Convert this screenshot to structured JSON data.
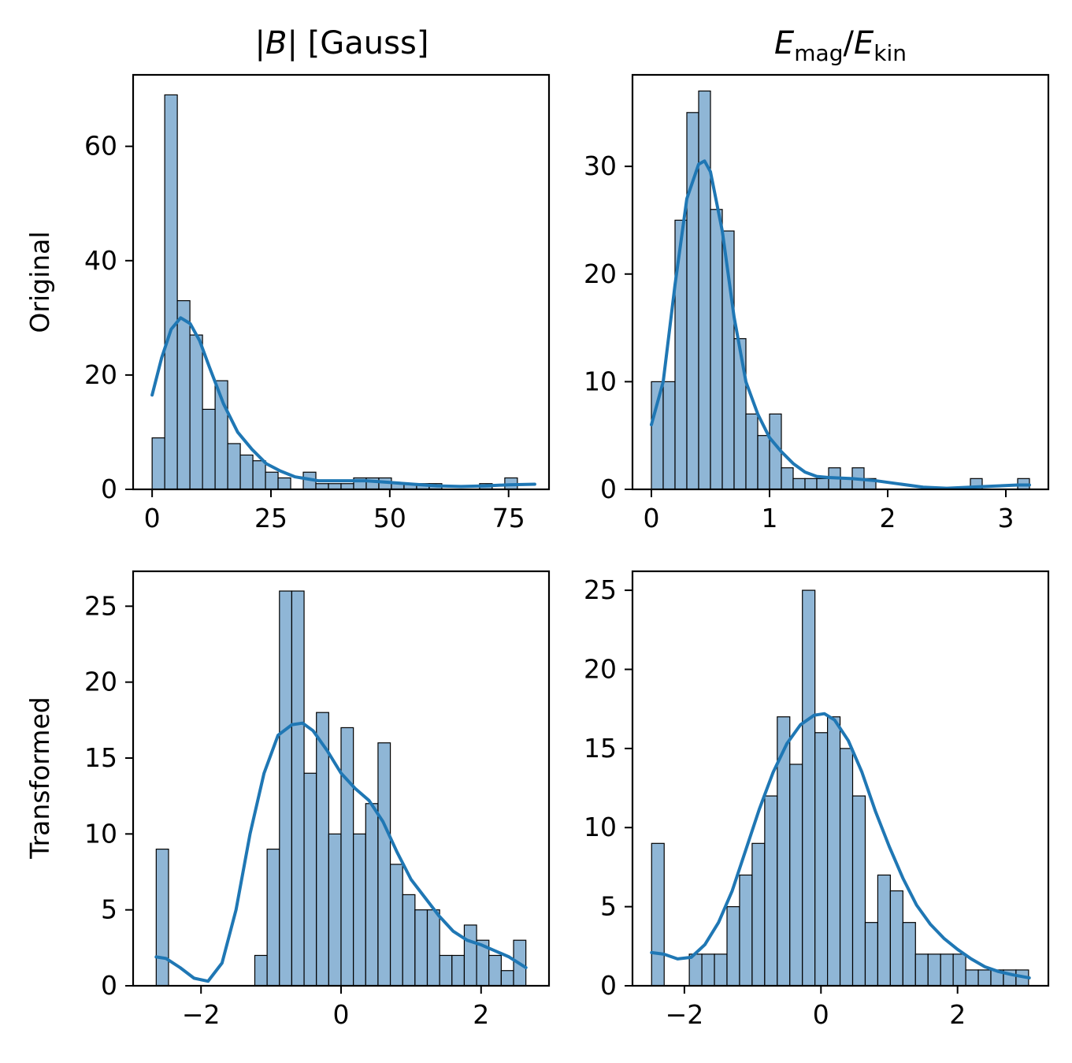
{
  "colors": {
    "bar_fill": "#8fb6d6",
    "bar_edge": "#000000",
    "kde_line": "#1f77b4",
    "axes": "#000000",
    "background": "#ffffff"
  },
  "figure": {
    "column_titles": [
      "|B| [Gauss]",
      "E_mag/E_kin"
    ],
    "row_labels": [
      "Original",
      "Transformed"
    ]
  },
  "chart_data": [
    {
      "id": "orig-b",
      "type": "bar",
      "row": "Original",
      "column": "|B| [Gauss]",
      "grid": false,
      "bin_start": 0.0,
      "bin_width": 2.65,
      "values": [
        9,
        69,
        33,
        27,
        14,
        19,
        8,
        6,
        5,
        3,
        2,
        0,
        3,
        1,
        1,
        1,
        2,
        2,
        2,
        1,
        1,
        1,
        1,
        0,
        0,
        0,
        1,
        0,
        2,
        0
      ],
      "kde": {
        "x": [
          0,
          2,
          4,
          6,
          8,
          10,
          12,
          15,
          18,
          21,
          24,
          27,
          30,
          35,
          40,
          45,
          50,
          55,
          60,
          65,
          70,
          75,
          80.5
        ],
        "y": [
          16.5,
          23,
          28,
          30,
          29,
          26,
          21.5,
          15,
          10,
          7,
          4.5,
          3.2,
          2.2,
          1.5,
          1.5,
          1.5,
          1.2,
          0.9,
          0.6,
          0.5,
          0.6,
          0.8,
          0.9
        ]
      },
      "xlim": [
        -4,
        83.5
      ],
      "ylim": [
        0,
        72.5
      ],
      "xticks": [
        0,
        25,
        50,
        75
      ],
      "xtick_labels": [
        "0",
        "25",
        "50",
        "75"
      ],
      "yticks": [
        0,
        20,
        40,
        60
      ],
      "ytick_labels": [
        "0",
        "20",
        "40",
        "60"
      ]
    },
    {
      "id": "orig-e",
      "type": "bar",
      "row": "Original",
      "column": "E_mag/E_kin",
      "grid": false,
      "bin_start": 0.0,
      "bin_width": 0.1,
      "values": [
        10,
        10,
        25,
        35,
        37,
        26,
        24,
        14,
        7,
        5,
        7,
        2,
        1,
        1,
        1,
        2,
        1,
        2,
        1,
        0,
        0,
        0,
        0,
        0,
        0,
        0,
        0,
        1,
        0,
        0,
        0,
        1
      ],
      "kde": {
        "x": [
          0,
          0.1,
          0.2,
          0.3,
          0.4,
          0.45,
          0.5,
          0.6,
          0.7,
          0.8,
          0.9,
          1.0,
          1.1,
          1.2,
          1.3,
          1.4,
          1.5,
          1.7,
          1.9,
          2.1,
          2.3,
          2.5,
          2.7,
          2.9,
          3.1,
          3.2
        ],
        "y": [
          6,
          10,
          19,
          27,
          30.2,
          30.5,
          29.5,
          24,
          16,
          10,
          7,
          4.8,
          3.5,
          2.4,
          1.6,
          1.2,
          1.1,
          1.0,
          0.8,
          0.5,
          0.2,
          0.1,
          0.2,
          0.3,
          0.4,
          0.4
        ]
      },
      "xlim": [
        -0.16,
        3.36
      ],
      "ylim": [
        0,
        38.5
      ],
      "xticks": [
        0,
        1,
        2,
        3
      ],
      "xtick_labels": [
        "0",
        "1",
        "2",
        "3"
      ],
      "yticks": [
        0,
        10,
        20,
        30
      ],
      "ytick_labels": [
        "0",
        "10",
        "20",
        "30"
      ]
    },
    {
      "id": "trans-b",
      "type": "bar",
      "row": "Transformed",
      "column": "|B| [Gauss]",
      "grid": false,
      "bin_start": -2.64,
      "bin_width": 0.176,
      "values": [
        9,
        0,
        0,
        0,
        0,
        0,
        0,
        0,
        2,
        9,
        26,
        26,
        14,
        18,
        10,
        17,
        10,
        12,
        16,
        8,
        6,
        5,
        5,
        2,
        2,
        4,
        3,
        2,
        1,
        3
      ],
      "kde": {
        "x": [
          -2.64,
          -2.5,
          -2.3,
          -2.1,
          -1.9,
          -1.7,
          -1.5,
          -1.3,
          -1.1,
          -0.9,
          -0.7,
          -0.55,
          -0.4,
          -0.2,
          0,
          0.2,
          0.4,
          0.6,
          0.8,
          1.0,
          1.2,
          1.4,
          1.6,
          1.8,
          2.0,
          2.2,
          2.4,
          2.64
        ],
        "y": [
          1.9,
          1.8,
          1.2,
          0.5,
          0.3,
          1.5,
          5,
          10,
          14,
          16.5,
          17.2,
          17.3,
          16.8,
          15.5,
          14,
          13,
          12.2,
          10.8,
          8.8,
          7,
          5.8,
          4.6,
          3.6,
          3.0,
          2.7,
          2.3,
          1.9,
          1.2
        ]
      },
      "xlim": [
        -2.97,
        2.97
      ],
      "ylim": [
        0,
        27.3
      ],
      "xticks": [
        -2,
        0,
        2
      ],
      "xtick_labels": [
        "−2",
        "0",
        "2"
      ],
      "yticks": [
        0,
        5,
        10,
        15,
        20,
        25
      ],
      "ytick_labels": [
        "0",
        "5",
        "10",
        "15",
        "20",
        "25"
      ]
    },
    {
      "id": "trans-e",
      "type": "bar",
      "row": "Transformed",
      "column": "E_mag/E_kin",
      "grid": false,
      "bin_start": -2.48,
      "bin_width": 0.184,
      "values": [
        9,
        0,
        0,
        2,
        2,
        2,
        5,
        7,
        9,
        12,
        17,
        14,
        25,
        16,
        17,
        15,
        12,
        4,
        7,
        6,
        4,
        2,
        2,
        2,
        2,
        1,
        1,
        1,
        1,
        1
      ],
      "kde": {
        "x": [
          -2.48,
          -2.3,
          -2.1,
          -1.9,
          -1.7,
          -1.5,
          -1.3,
          -1.1,
          -0.9,
          -0.7,
          -0.5,
          -0.3,
          -0.1,
          0.05,
          0.2,
          0.4,
          0.6,
          0.8,
          1.0,
          1.2,
          1.4,
          1.6,
          1.8,
          2.0,
          2.2,
          2.4,
          2.6,
          2.8,
          3.05
        ],
        "y": [
          2.1,
          2.0,
          1.7,
          1.8,
          2.6,
          4.0,
          6.0,
          8.6,
          11.2,
          13.5,
          15.3,
          16.5,
          17.1,
          17.2,
          16.8,
          15.5,
          13.5,
          11.0,
          8.8,
          6.8,
          5.1,
          3.9,
          3.0,
          2.3,
          1.7,
          1.2,
          0.9,
          0.7,
          0.5
        ]
      },
      "xlim": [
        -2.76,
        3.33
      ],
      "ylim": [
        0,
        26.2
      ],
      "xticks": [
        -2,
        0,
        2
      ],
      "xtick_labels": [
        "−2",
        "0",
        "2"
      ],
      "yticks": [
        0,
        5,
        10,
        15,
        20,
        25
      ],
      "ytick_labels": [
        "0",
        "5",
        "10",
        "15",
        "20",
        "25"
      ]
    }
  ]
}
